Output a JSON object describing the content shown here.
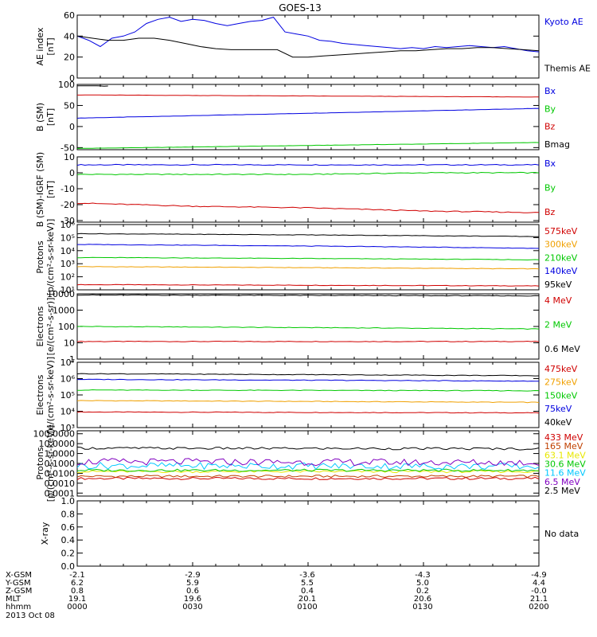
{
  "title": "GOES-13",
  "colors": {
    "blue": "#0000e0",
    "green": "#00c800",
    "red": "#d00000",
    "black": "#000000",
    "orange": "#f0a000",
    "cyan": "#00c8ff",
    "purple": "#8000c0",
    "yellow": "#e8e800",
    "brown": "#c04000"
  },
  "chart_data": [
    {
      "type": "line",
      "id": "ae",
      "ylabel": "AE index\n[nT]",
      "ylim": [
        0,
        60
      ],
      "scale": "linear",
      "yticks": [
        "0",
        "20",
        "40",
        "60"
      ],
      "series": [
        {
          "name": "Kyoto AE",
          "color": "#0000e0",
          "x": [
            0,
            3,
            6,
            9,
            12,
            15,
            18,
            21,
            24,
            27,
            30,
            33,
            36,
            39,
            42,
            45,
            48,
            51,
            54,
            57,
            60,
            63,
            66,
            69,
            72,
            75,
            78,
            81,
            84,
            87,
            90,
            93,
            96,
            99,
            102,
            105,
            108,
            111,
            114,
            117,
            120
          ],
          "y": [
            40,
            36,
            30,
            38,
            40,
            44,
            52,
            56,
            58,
            54,
            56,
            55,
            52,
            50,
            52,
            54,
            55,
            58,
            44,
            42,
            40,
            36,
            35,
            33,
            32,
            31,
            30,
            29,
            28,
            29,
            28,
            30,
            29,
            30,
            31,
            30,
            29,
            30,
            28,
            26,
            25
          ]
        },
        {
          "name": "Themis AE",
          "color": "#000000",
          "x": [
            0,
            4,
            8,
            12,
            16,
            20,
            24,
            28,
            32,
            36,
            40,
            44,
            48,
            52,
            56,
            60,
            64,
            68,
            72,
            76,
            80,
            84,
            88,
            92,
            96,
            100,
            104,
            108,
            112,
            116,
            120
          ],
          "y": [
            40,
            38,
            36,
            36,
            38,
            38,
            36,
            33,
            30,
            28,
            27,
            27,
            27,
            27,
            20,
            20,
            21,
            22,
            23,
            24,
            25,
            26,
            26,
            27,
            28,
            28,
            29,
            29,
            28,
            27,
            26
          ]
        }
      ]
    },
    {
      "type": "line",
      "id": "bsm",
      "ylabel": "B (SM)\n[nT]",
      "ylim": [
        -55,
        100
      ],
      "scale": "linear",
      "yticks": [
        "-50",
        "0",
        "50",
        "100"
      ],
      "series": [
        {
          "name": "Bx",
          "color": "#0000e0",
          "x": [
            0,
            120
          ],
          "y": [
            20,
            43
          ]
        },
        {
          "name": "By",
          "color": "#00c800",
          "x": [
            0,
            120
          ],
          "y": [
            -52,
            -38
          ]
        },
        {
          "name": "Bz",
          "color": "#d00000",
          "x": [
            0,
            120
          ],
          "y": [
            75,
            70
          ]
        },
        {
          "name": "Bmag",
          "color": "#000000",
          "x": [
            0,
            8
          ],
          "y": [
            97,
            96
          ]
        }
      ]
    },
    {
      "type": "line",
      "id": "bigrf",
      "ylabel": "B (SM)-IGRF (SM)\n[nT]",
      "ylim": [
        -31,
        10
      ],
      "scale": "linear",
      "yticks": [
        "-30",
        "-20",
        "-10",
        "0",
        "10"
      ],
      "series": [
        {
          "name": "Bx",
          "color": "#0000e0",
          "x": [
            0,
            30,
            60,
            90,
            120
          ],
          "y": [
            5,
            5,
            5,
            5,
            5
          ]
        },
        {
          "name": "By",
          "color": "#00c800",
          "x": [
            0,
            30,
            60,
            90,
            120
          ],
          "y": [
            -1,
            -1,
            -1,
            0,
            0
          ]
        },
        {
          "name": "Bz",
          "color": "#d00000",
          "x": [
            0,
            30,
            60,
            90,
            120
          ],
          "y": [
            -19,
            -21,
            -22,
            -24,
            -25
          ]
        }
      ]
    },
    {
      "type": "line",
      "id": "proton_kev",
      "ylabel": "Protons\n[p/(cm²-s-sr-keV)]",
      "ylim": [
        10,
        1000000
      ],
      "scale": "log",
      "yticks": [
        "10¹",
        "10²",
        "10³",
        "10⁴",
        "10⁵",
        "10⁶"
      ],
      "series": [
        {
          "name": "575keV",
          "color": "#d00000",
          "x": [
            0,
            120
          ],
          "y": [
            25,
            20
          ]
        },
        {
          "name": "300keV",
          "color": "#f0a000",
          "x": [
            0,
            120
          ],
          "y": [
            600,
            400
          ]
        },
        {
          "name": "210keV",
          "color": "#00c800",
          "x": [
            0,
            120
          ],
          "y": [
            3000,
            2000
          ]
        },
        {
          "name": "140keV",
          "color": "#0000e0",
          "x": [
            0,
            120
          ],
          "y": [
            30000,
            15000
          ]
        },
        {
          "name": "95keV",
          "color": "#000000",
          "x": [
            0,
            120
          ],
          "y": [
            200000,
            120000
          ]
        }
      ]
    },
    {
      "type": "line",
      "id": "electron_mev",
      "ylabel": "Electrons\n[e/(cm²-s-sr)]",
      "ylim": [
        1,
        10000
      ],
      "scale": "log",
      "yticks": [
        "1",
        "10",
        "100",
        "1000",
        "10000"
      ],
      "series": [
        {
          "name": "4 MeV",
          "color": "#d00000",
          "x": [
            0,
            120
          ],
          "y": [
            12,
            12
          ]
        },
        {
          "name": "2 MeV",
          "color": "#00c800",
          "x": [
            0,
            120
          ],
          "y": [
            100,
            70
          ]
        },
        {
          "name": "0.6 MeV",
          "color": "#000000",
          "x": [
            0,
            120
          ],
          "y": [
            8500,
            7500
          ]
        }
      ]
    },
    {
      "type": "line",
      "id": "electron_kev",
      "ylabel": "Electrons\n[e/(cm²-s-sr-keV)]",
      "ylim": [
        1000,
        10000000
      ],
      "scale": "log",
      "yticks": [
        "10³",
        "10⁴",
        "10⁵",
        "10⁶",
        "10⁷"
      ],
      "series": [
        {
          "name": "475keV",
          "color": "#d00000",
          "x": [
            0,
            120
          ],
          "y": [
            9000,
            8000
          ]
        },
        {
          "name": "275keV",
          "color": "#f0a000",
          "x": [
            0,
            120
          ],
          "y": [
            45000,
            35000
          ]
        },
        {
          "name": "150keV",
          "color": "#00c800",
          "x": [
            0,
            120
          ],
          "y": [
            200000,
            180000
          ]
        },
        {
          "name": "75keV",
          "color": "#0000e0",
          "x": [
            0,
            120
          ],
          "y": [
            900000,
            700000
          ]
        },
        {
          "name": "40keV",
          "color": "#000000",
          "x": [
            0,
            120
          ],
          "y": [
            2000000,
            1500000
          ]
        }
      ]
    },
    {
      "type": "line",
      "id": "proton_mev",
      "ylabel": "Protons\n[p/(cm²-s-sr-keV)]",
      "ylim": [
        5e-05,
        200
      ],
      "scale": "log",
      "yticks": [
        "0.0001",
        "0.0010",
        "0.0100",
        "0.1000",
        "1.0000",
        "10.0000",
        "100.0000"
      ],
      "series": [
        {
          "name": "433 MeV",
          "color": "#d00000",
          "x": [
            0,
            120
          ],
          "y": [
            0.003,
            0.003
          ]
        },
        {
          "name": "165 MeV",
          "color": "#c04000",
          "x": [
            0,
            120
          ],
          "y": [
            0.005,
            0.005
          ]
        },
        {
          "name": "63.1 MeV",
          "color": "#e8e800",
          "x": [
            0,
            120
          ],
          "y": [
            0.015,
            0.015
          ]
        },
        {
          "name": "30.6 MeV",
          "color": "#00c800",
          "x": [
            0,
            120
          ],
          "y": [
            0.02,
            0.02
          ]
        },
        {
          "name": "11.6 MeV",
          "color": "#00c8ff",
          "x": [
            0,
            120
          ],
          "y": [
            0.06,
            0.05
          ]
        },
        {
          "name": "6.5 MeV",
          "color": "#8000c0",
          "x": [
            0,
            120
          ],
          "y": [
            0.15,
            0.12
          ]
        },
        {
          "name": "2.5 MeV",
          "color": "#000000",
          "x": [
            0,
            120
          ],
          "y": [
            3.5,
            3.0
          ]
        }
      ]
    },
    {
      "type": "line",
      "id": "xray",
      "ylabel": "X-ray",
      "ylim": [
        0,
        1
      ],
      "scale": "linear",
      "yticks": [
        "0.0",
        "0.2",
        "0.4",
        "0.6",
        "0.8",
        "1.0"
      ],
      "note": "No data",
      "series": []
    }
  ],
  "xaxis": {
    "rows": [
      {
        "label": "X-GSM",
        "values": [
          "-2.1",
          "-2.9",
          "-3.6",
          "-4.3",
          "-4.9"
        ]
      },
      {
        "label": "Y-GSM",
        "values": [
          "6.2",
          "5.9",
          "5.5",
          "5.0",
          "4.4"
        ]
      },
      {
        "label": "Z-GSM",
        "values": [
          "0.8",
          "0.6",
          "0.4",
          "0.2",
          "-0.0"
        ]
      },
      {
        "label": "MLT",
        "values": [
          "19.1",
          "19.6",
          "20.1",
          "20.6",
          "21.1"
        ]
      },
      {
        "label": "hhmm",
        "values": [
          "0000",
          "0030",
          "0100",
          "0130",
          "0200"
        ]
      }
    ],
    "date": "2013 Oct 08"
  }
}
